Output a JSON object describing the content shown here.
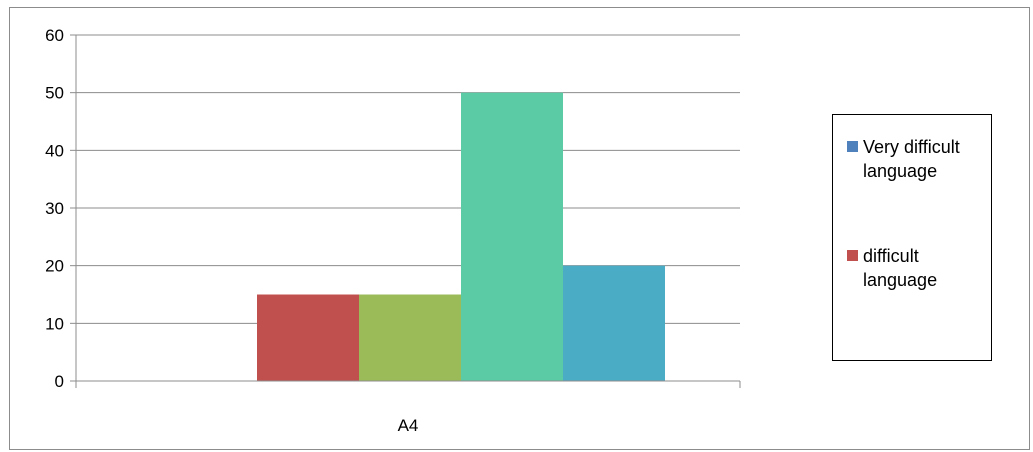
{
  "chart_data": {
    "type": "bar",
    "categories": [
      "A4"
    ],
    "series": [
      {
        "name": "Very difficult language",
        "values": [
          0
        ],
        "color": "#4F81BD"
      },
      {
        "name": "difficult language",
        "values": [
          15
        ],
        "color": "#C0504D"
      },
      {
        "values": [
          15
        ],
        "color": "#9BBB59"
      },
      {
        "values": [
          50
        ],
        "color": "#5BCBA5"
      },
      {
        "values": [
          20
        ],
        "color": "#4BACC6"
      }
    ],
    "ylim": [
      0,
      60
    ],
    "yticks": [
      "0",
      "10",
      "20",
      "30",
      "40",
      "50",
      "60"
    ],
    "grid": true,
    "legend": "right"
  }
}
